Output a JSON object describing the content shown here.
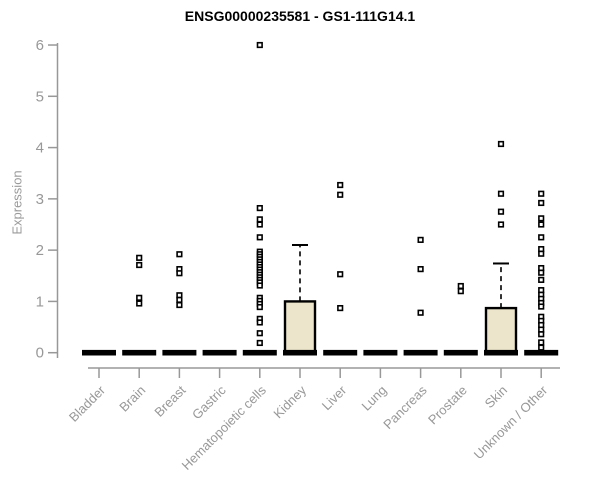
{
  "title": "ENSG00000235581 - GS1-111G14.1",
  "chart_data": {
    "type": "box",
    "title": "ENSG00000235581 - GS1-111G14.1",
    "xlabel": "",
    "ylabel": "Expression",
    "ylim": [
      0,
      6
    ],
    "yticks": [
      0,
      1,
      2,
      3,
      4,
      5,
      6
    ],
    "grid": false,
    "legend": "none",
    "axis_color": "#989898",
    "box_fill_color": "#ECE5CB",
    "box_stroke_color": "#000000",
    "outlier_color": "#000000",
    "categories": [
      "Bladder",
      "Brain",
      "Breast",
      "Gastric",
      "Hematopoietic cells",
      "Kidney",
      "Liver",
      "Lung",
      "Pancreas",
      "Prostate",
      "Skin",
      "Unknown / Other"
    ],
    "series": [
      {
        "name": "Bladder",
        "q1": 0,
        "median": 0,
        "q3": 0,
        "whisker_low": 0,
        "whisker_high": 0,
        "outliers": []
      },
      {
        "name": "Brain",
        "q1": 0,
        "median": 0,
        "q3": 0,
        "whisker_low": 0,
        "whisker_high": 0,
        "outliers": [
          1.85,
          1.71,
          1.07,
          0.96
        ]
      },
      {
        "name": "Breast",
        "q1": 0,
        "median": 0,
        "q3": 0,
        "whisker_low": 0,
        "whisker_high": 0,
        "outliers": [
          1.92,
          1.63,
          1.55,
          1.12,
          1.03,
          0.93
        ]
      },
      {
        "name": "Gastric",
        "q1": 0,
        "median": 0,
        "q3": 0,
        "whisker_low": 0,
        "whisker_high": 0,
        "outliers": []
      },
      {
        "name": "Hematopoietic cells",
        "q1": 0,
        "median": 0,
        "q3": 0,
        "whisker_low": 0,
        "whisker_high": 0,
        "outliers": [
          6.0,
          2.82,
          2.6,
          2.5,
          2.25,
          1.97,
          1.92,
          1.87,
          1.82,
          1.77,
          1.72,
          1.67,
          1.62,
          1.57,
          1.52,
          1.47,
          1.42,
          1.37,
          1.31,
          1.07,
          1.01,
          0.95,
          0.89,
          0.66,
          0.59,
          0.38,
          0.19
        ]
      },
      {
        "name": "Kidney",
        "q1": 0,
        "median": 0,
        "q3": 1.0,
        "whisker_low": 0,
        "whisker_high": 2.1,
        "outliers": []
      },
      {
        "name": "Liver",
        "q1": 0,
        "median": 0,
        "q3": 0,
        "whisker_low": 0,
        "whisker_high": 0,
        "outliers": [
          3.27,
          3.08,
          1.53,
          0.87
        ]
      },
      {
        "name": "Lung",
        "q1": 0,
        "median": 0,
        "q3": 0,
        "whisker_low": 0,
        "whisker_high": 0,
        "outliers": []
      },
      {
        "name": "Pancreas",
        "q1": 0,
        "median": 0,
        "q3": 0,
        "whisker_low": 0,
        "whisker_high": 0,
        "outliers": [
          2.2,
          1.63,
          0.78
        ]
      },
      {
        "name": "Prostate",
        "q1": 0,
        "median": 0,
        "q3": 0,
        "whisker_low": 0,
        "whisker_high": 0,
        "outliers": [
          1.3,
          1.2
        ]
      },
      {
        "name": "Skin",
        "q1": 0,
        "median": 0,
        "q3": 0.87,
        "whisker_low": 0,
        "whisker_high": 1.74,
        "outliers": [
          4.07,
          3.1,
          2.75,
          2.5
        ]
      },
      {
        "name": "Unknown / Other",
        "q1": 0,
        "median": 0,
        "q3": 0,
        "whisker_low": 0,
        "whisker_high": 0,
        "outliers": [
          3.1,
          2.92,
          2.62,
          2.5,
          2.25,
          2.02,
          1.93,
          1.65,
          1.56,
          1.42,
          1.22,
          1.13,
          1.05,
          0.97,
          0.9,
          0.7,
          0.62,
          0.54,
          0.45,
          0.36,
          0.2,
          0.1
        ]
      }
    ]
  }
}
